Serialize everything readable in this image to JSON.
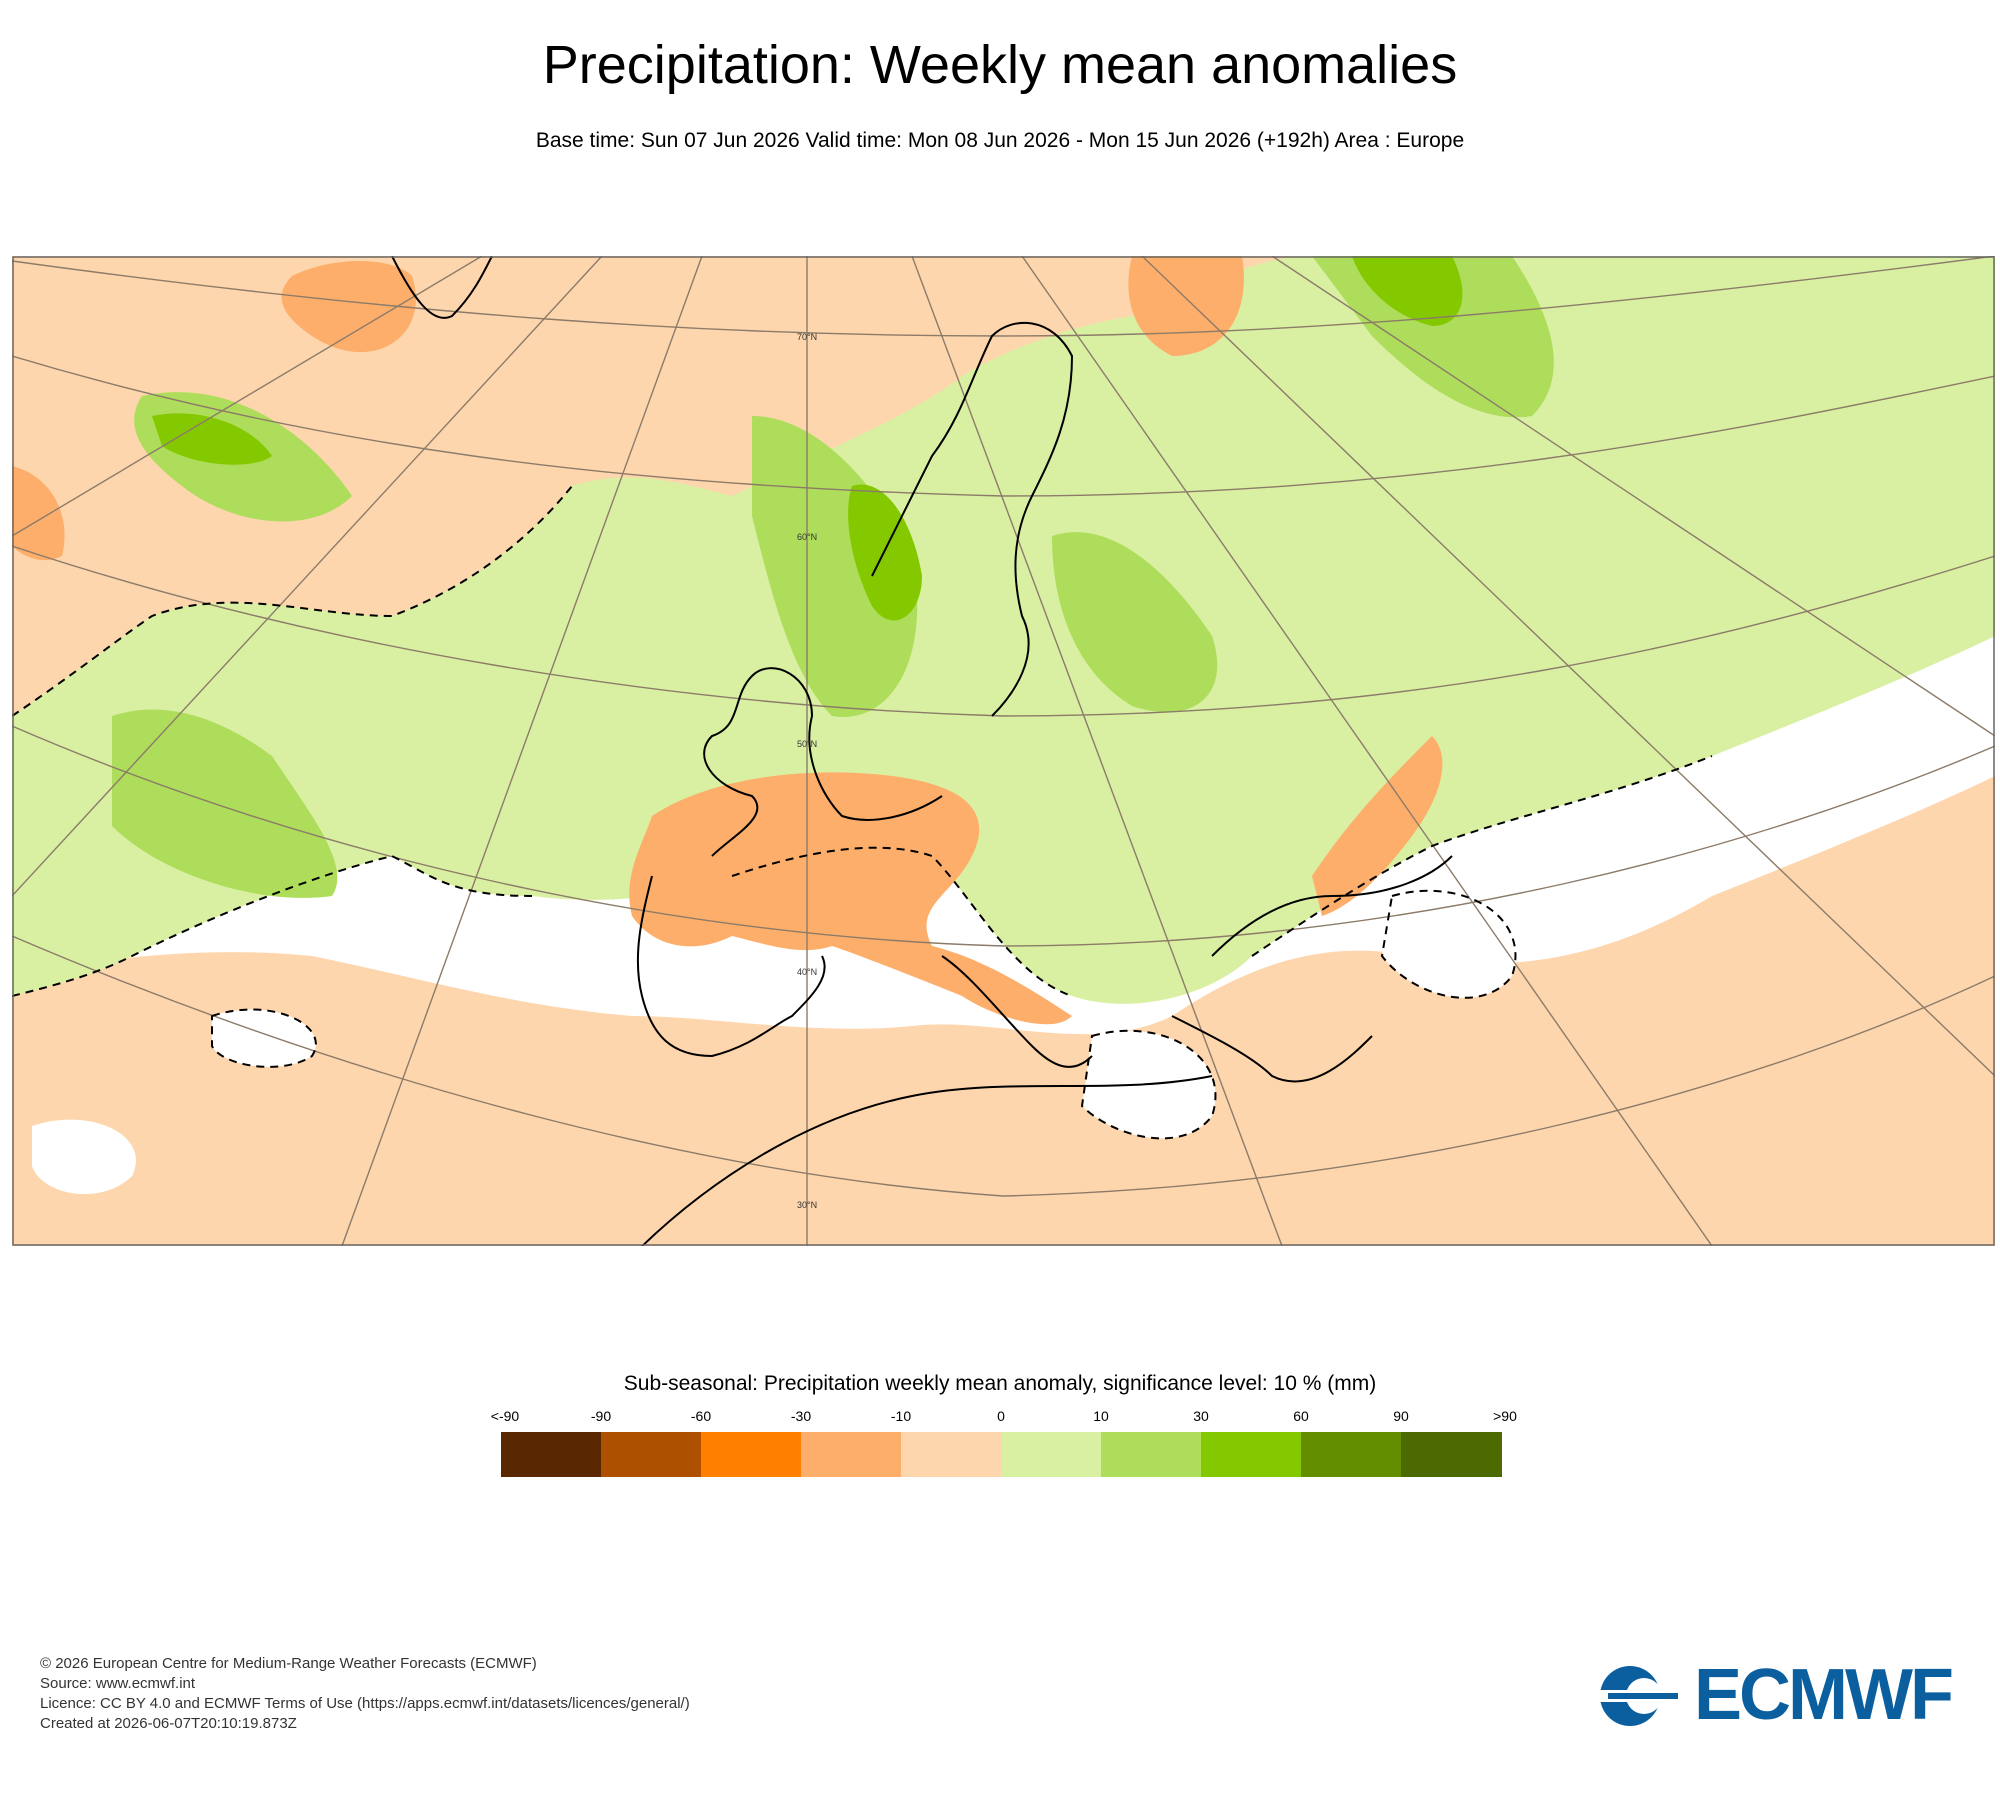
{
  "header": {
    "title": "Precipitation: Weekly mean anomalies",
    "subtitle": "Base time: Sun 07 Jun 2026 Valid time: Mon 08 Jun 2026 - Mon 15 Jun 2026 (+192h) Area : Europe"
  },
  "map": {
    "lat_labels": [
      "70°N",
      "60°N",
      "50°N",
      "40°N",
      "30°N"
    ],
    "colors": {
      "sea_dry": "#fdd6ad",
      "dry": "#fdae6b",
      "wet1": "#d9f0a3",
      "wet2": "#addd5a",
      "wet3": "#84c800",
      "grid": "#8c7b69",
      "coast": "#000000"
    }
  },
  "legend": {
    "title": "Sub-seasonal: Precipitation weekly mean anomaly, significance level: 10 % (mm)",
    "ticks": [
      "<-90",
      "-90",
      "-60",
      "-30",
      "-10",
      "0",
      "10",
      "30",
      "60",
      "90",
      ">90"
    ],
    "colors": [
      "#5a2800",
      "#ad5100",
      "#ff7f00",
      "#fdae6b",
      "#fdd6ad",
      "#d9f0a3",
      "#addd5a",
      "#84c800",
      "#628e00",
      "#4d6a00"
    ]
  },
  "footer": {
    "line1": "© 2026 European Centre for Medium-Range Weather Forecasts (ECMWF)",
    "line2": "Source: www.ecmwf.int",
    "line3": "Licence: CC BY 4.0 and ECMWF Terms of Use (https://apps.ecmwf.int/datasets/licences/general/)",
    "line4": "Created at 2026-06-07T20:10:19.873Z"
  },
  "logo": {
    "text": "ECMWF",
    "color": "#0b5f9e"
  }
}
